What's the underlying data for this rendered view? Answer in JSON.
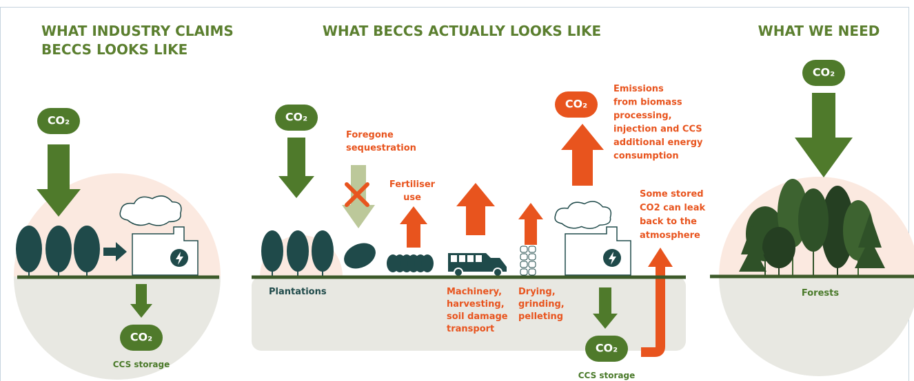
{
  "panels": [
    {
      "title": [
        "WHAT INDUSTRY CLAIMS",
        "BECCS LOOKS LIKE"
      ],
      "co2_top": "CO₂",
      "co2_storage": "CO₂",
      "storage_label": "CCS storage"
    },
    {
      "title": [
        "WHAT BECCS ACTUALLY LOOKS LIKE"
      ],
      "co2_top": "CO₂",
      "co2_emissions": "CO₂",
      "co2_storage": "CO₂",
      "storage_label": "CCS storage",
      "labels": {
        "foregone": [
          "Foregone",
          "sequestration"
        ],
        "fertiliser": [
          "Fertiliser",
          "use"
        ],
        "plantations": "Plantations",
        "machinery": [
          "Machinery,",
          "harvesting,",
          "soil damage",
          "transport"
        ],
        "drying": [
          "Drying,",
          "grinding,",
          "pelleting"
        ],
        "emissions": [
          "Emissions",
          "from biomass",
          "processing,",
          "injection and CCS",
          "additional energy",
          "consumption"
        ],
        "leak": [
          "Some stored",
          "CO2 can leak",
          "back to the",
          "atmosphere"
        ]
      }
    },
    {
      "title": [
        "WHAT WE NEED"
      ],
      "co2_top": "CO₂",
      "forests": "Forests"
    }
  ]
}
